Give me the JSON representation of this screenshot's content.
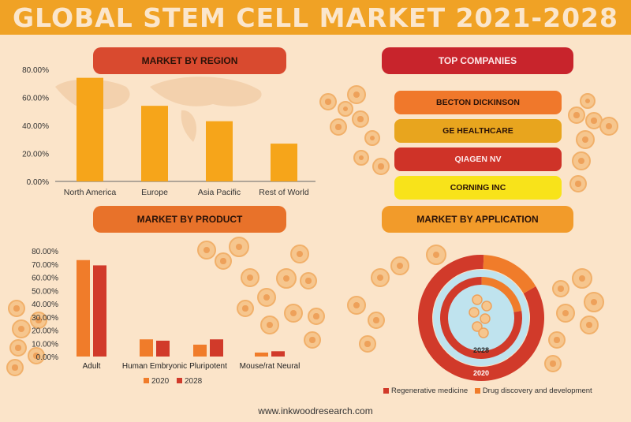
{
  "title": "GLOBAL STEM CELL MARKET 2021-2028",
  "sections": {
    "region": "MARKET BY REGION",
    "product": "MARKET BY PRODUCT",
    "companies": "TOP COMPANIES",
    "application": "MARKET BY APPLICATION"
  },
  "companies": [
    {
      "name": "BECTON DICKINSON",
      "color": "#f0782b"
    },
    {
      "name": "GE HEALTHCARE",
      "color": "#e8a51e"
    },
    {
      "name": "QIAGEN NV",
      "color": "#cf3328"
    },
    {
      "name": "CORNING INC",
      "color": "#f8e31a"
    }
  ],
  "colors": {
    "banner": "#f0a225",
    "region_bar": "#f6a51a",
    "product_2020": "#f07c2a",
    "product_2028": "#d13a2a",
    "donut_outer": "#d13a2a",
    "donut_inner": "#f07c2a",
    "ring_light": "#bfe3ee"
  },
  "chart_data": [
    {
      "type": "bar",
      "categories": [
        "North America",
        "Europe",
        "Asia Pacific",
        "Rest of World"
      ],
      "values": [
        74,
        54,
        43,
        27
      ],
      "yticks": [
        "80.00%",
        "60.00%",
        "40.00%",
        "20.00%",
        "0.00%"
      ],
      "ylim": [
        0,
        80
      ]
    },
    {
      "type": "bar",
      "categories": [
        "Adult",
        "Human Embryonic",
        "Pluripotent",
        "Mouse/rat Neural"
      ],
      "series": [
        {
          "name": "2020",
          "values": [
            73,
            13,
            9,
            3
          ]
        },
        {
          "name": "2028",
          "values": [
            69,
            12,
            13,
            4
          ]
        }
      ],
      "yticks": [
        "80.00%",
        "70.00%",
        "60.00%",
        "50.00%",
        "40.00%",
        "30.00%",
        "20.00%",
        "10.00%",
        "0.00%"
      ],
      "ylim": [
        0,
        80
      ]
    },
    {
      "type": "pie",
      "rings": [
        {
          "label": "2020",
          "values": [
            84,
            16
          ]
        },
        {
          "label": "2028",
          "values": [
            78,
            22
          ]
        }
      ],
      "legend": [
        "Regenerative medicine",
        "Drug discovery and development"
      ]
    }
  ],
  "footer": "www.inkwoodresearch.com"
}
